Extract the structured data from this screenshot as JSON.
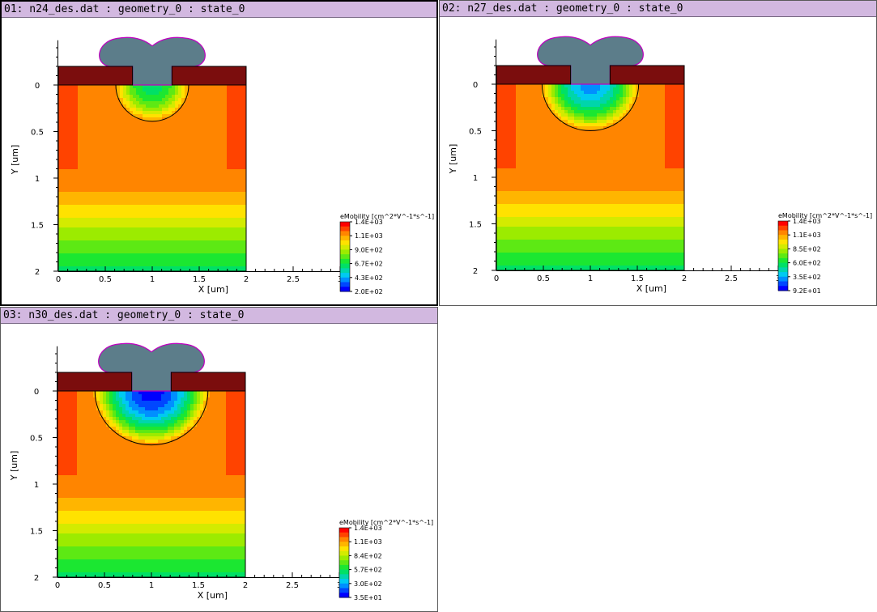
{
  "colors": {
    "title_bar": "#d2b8e0",
    "contact": "#7b0d0d",
    "gate": "#5c7d8a",
    "gate_outline": "#c000c0",
    "contour_line": "#000000"
  },
  "panels": [
    {
      "title": "01: n24_des.dat : geometry_0 : state_0",
      "active": true,
      "chart_data": {
        "type": "heatmap",
        "xlabel": "X [um]",
        "ylabel": "Y [um]",
        "xlim": [
          0,
          3
        ],
        "ylim": [
          2,
          -0.45
        ],
        "x_ticks": [
          "0",
          "0.5",
          "1",
          "1.5",
          "2",
          "2.5",
          "3"
        ],
        "y_ticks": [
          "0",
          "0.5",
          "1",
          "1.5",
          "2"
        ],
        "legend_title": "eMobility [cm^2*V^-1*s^-1]",
        "legend_labels": [
          "1.4E+03",
          "1.1E+03",
          "9.0E+02",
          "6.7E+02",
          "4.3E+02",
          "2.0E+02"
        ],
        "depletion_depth": 0.39,
        "depletion_halfwidth": 0.4,
        "min_level": 0.35
      }
    },
    {
      "title": "02: n27_des.dat : geometry_0 : state_0",
      "active": false,
      "chart_data": {
        "type": "heatmap",
        "xlabel": "X [um]",
        "ylabel": "Y [um]",
        "xlim": [
          0,
          3
        ],
        "ylim": [
          2,
          -0.45
        ],
        "x_ticks": [
          "0",
          "0.5",
          "1",
          "1.5",
          "2",
          "2.5",
          "3"
        ],
        "y_ticks": [
          "0",
          "0.5",
          "1",
          "1.5",
          "2"
        ],
        "legend_title": "eMobility [cm^2*V^-1*s^-1]",
        "legend_labels": [
          "1.4E+03",
          "1.1E+03",
          "8.5E+02",
          "6.0E+02",
          "3.5E+02",
          "9.2E+01"
        ],
        "depletion_depth": 0.5,
        "depletion_halfwidth": 0.53,
        "min_level": 0.15
      }
    },
    {
      "title": "03: n30_des.dat : geometry_0 : state_0",
      "active": false,
      "chart_data": {
        "type": "heatmap",
        "xlabel": "X [um]",
        "ylabel": "Y [um]",
        "xlim": [
          0,
          3
        ],
        "ylim": [
          2,
          -0.45
        ],
        "x_ticks": [
          "0",
          "0.5",
          "1",
          "1.5",
          "2",
          "2.5",
          "3"
        ],
        "y_ticks": [
          "0",
          "0.5",
          "1",
          "1.5",
          "2"
        ],
        "legend_title": "eMobility [cm^2*V^-1*s^-1]",
        "legend_labels": [
          "1.4E+03",
          "1.1E+03",
          "8.4E+02",
          "5.7E+02",
          "3.0E+02",
          "3.5E+01"
        ],
        "depletion_depth": 0.58,
        "depletion_halfwidth": 0.62,
        "min_level": 0.0
      }
    }
  ]
}
